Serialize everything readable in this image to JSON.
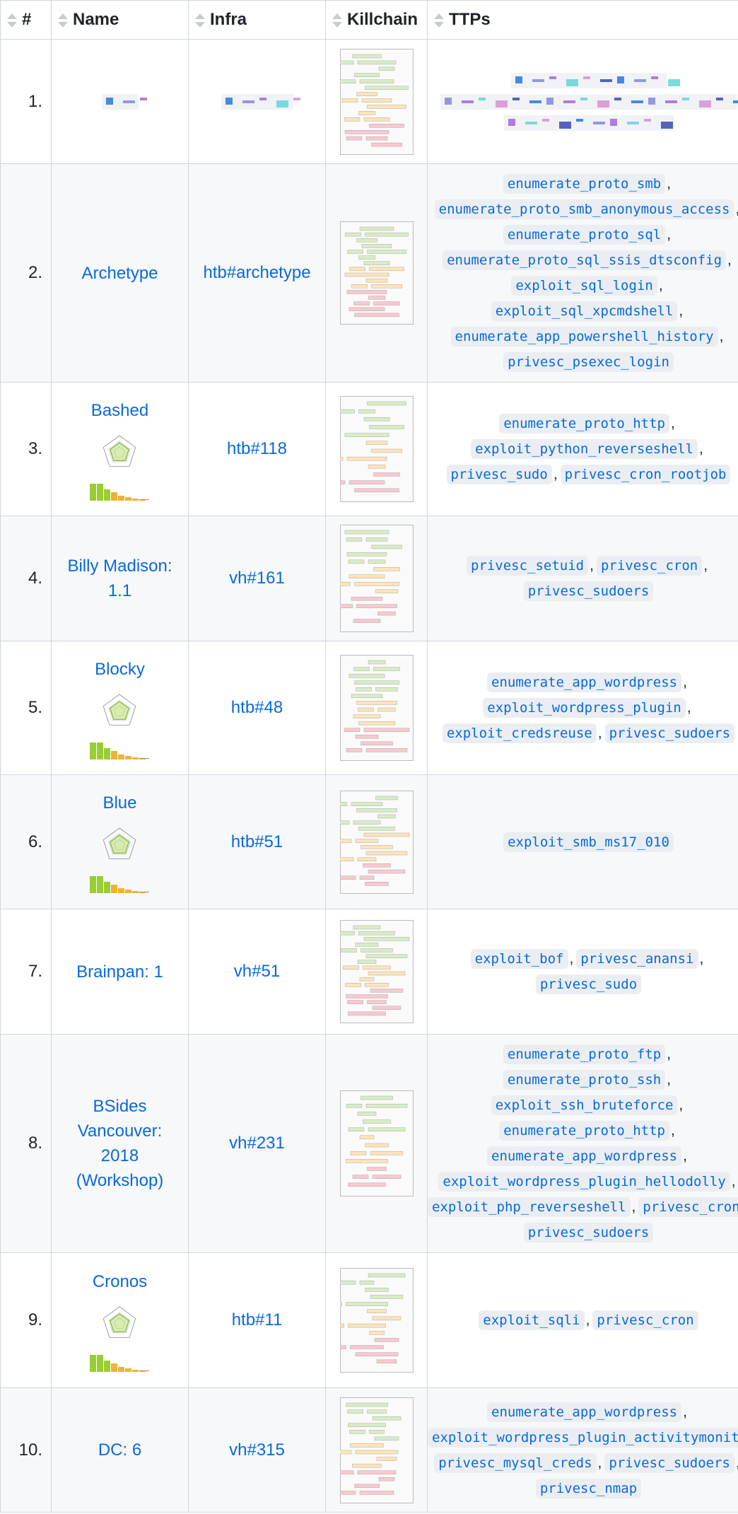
{
  "table": {
    "columns": [
      "#",
      "Name",
      "Infra",
      "Killchain",
      "TTPs"
    ],
    "rows": [
      {
        "num": "1.",
        "name": "",
        "infra": "",
        "ttps": []
      },
      {
        "num": "2.",
        "name": "Archetype",
        "infra": "htb#archetype",
        "has_meta": false,
        "ttps": [
          "enumerate_proto_smb",
          "enumerate_proto_smb_anonymous_access",
          "enumerate_proto_sql",
          "enumerate_proto_sql_ssis_dtsconfig",
          "exploit_sql_login",
          "exploit_sql_xpcmdshell",
          "enumerate_app_powershell_history",
          "privesc_psexec_login"
        ],
        "ttp_lines": [
          [
            0
          ],
          [
            1
          ],
          [
            2
          ],
          [
            3
          ],
          [
            4
          ],
          [
            5
          ],
          [
            6
          ],
          [
            7
          ]
        ]
      },
      {
        "num": "3.",
        "name": "Bashed",
        "infra": "htb#118",
        "has_meta": true,
        "ttps": [
          "enumerate_proto_http",
          "exploit_python_reverseshell",
          "privesc_sudo",
          "privesc_cron_rootjob"
        ],
        "ttp_lines": [
          [
            0
          ],
          [
            1
          ],
          [
            2,
            3
          ]
        ]
      },
      {
        "num": "4.",
        "name": "Billy Madison: 1.1",
        "infra": "vh#161",
        "has_meta": false,
        "ttps": [
          "privesc_setuid",
          "privesc_cron",
          "privesc_sudoers"
        ],
        "ttp_lines": [
          [
            0,
            1
          ],
          [
            2
          ]
        ]
      },
      {
        "num": "5.",
        "name": "Blocky",
        "infra": "htb#48",
        "has_meta": true,
        "ttps": [
          "enumerate_app_wordpress",
          "exploit_wordpress_plugin",
          "exploit_credsreuse",
          "privesc_sudoers"
        ],
        "ttp_lines": [
          [
            0
          ],
          [
            1
          ],
          [
            2,
            3
          ]
        ]
      },
      {
        "num": "6.",
        "name": "Blue",
        "infra": "htb#51",
        "has_meta": true,
        "ttps": [
          "exploit_smb_ms17_010"
        ],
        "ttp_lines": [
          [
            0
          ]
        ]
      },
      {
        "num": "7.",
        "name": "Brainpan: 1",
        "infra": "vh#51",
        "has_meta": false,
        "ttps": [
          "exploit_bof",
          "privesc_anansi",
          "privesc_sudo"
        ],
        "ttp_lines": [
          [
            0,
            1
          ],
          [
            2
          ]
        ]
      },
      {
        "num": "8.",
        "name": "BSides Vancouver: 2018 (Workshop)",
        "infra": "vh#231",
        "has_meta": false,
        "ttps": [
          "enumerate_proto_ftp",
          "enumerate_proto_ssh",
          "exploit_ssh_bruteforce",
          "enumerate_proto_http",
          "enumerate_app_wordpress",
          "exploit_wordpress_plugin_hellodolly",
          "exploit_php_reverseshell",
          "privesc_cron",
          "privesc_sudoers"
        ],
        "ttp_lines": [
          [
            0
          ],
          [
            1
          ],
          [
            2
          ],
          [
            3
          ],
          [
            4
          ],
          [
            5
          ],
          [
            6,
            7
          ],
          [
            8
          ]
        ]
      },
      {
        "num": "9.",
        "name": "Cronos",
        "infra": "htb#11",
        "has_meta": true,
        "ttps": [
          "exploit_sqli",
          "privesc_cron"
        ],
        "ttp_lines": [
          [
            0,
            1
          ]
        ]
      },
      {
        "num": "10.",
        "name": "DC: 6",
        "infra": "vh#315",
        "has_meta": false,
        "ttps": [
          "enumerate_app_wordpress",
          "exploit_wordpress_plugin_activitymonitor",
          "privesc_mysql_creds",
          "privesc_sudoers",
          "privesc_nmap"
        ],
        "ttp_lines": [
          [
            0
          ],
          [
            1
          ],
          [
            2,
            3
          ],
          [
            4
          ]
        ]
      }
    ]
  },
  "colors": {
    "link": "#0969da",
    "border": "#d0d7de",
    "alt_row": "#f6f8fa",
    "code_bg": "#eaeef2",
    "kc_green": "#d9ecc6",
    "kc_orange": "#fde4b8",
    "kc_red": "#f8c9cf"
  },
  "icons": {
    "sort": "sort-arrows-icon"
  }
}
